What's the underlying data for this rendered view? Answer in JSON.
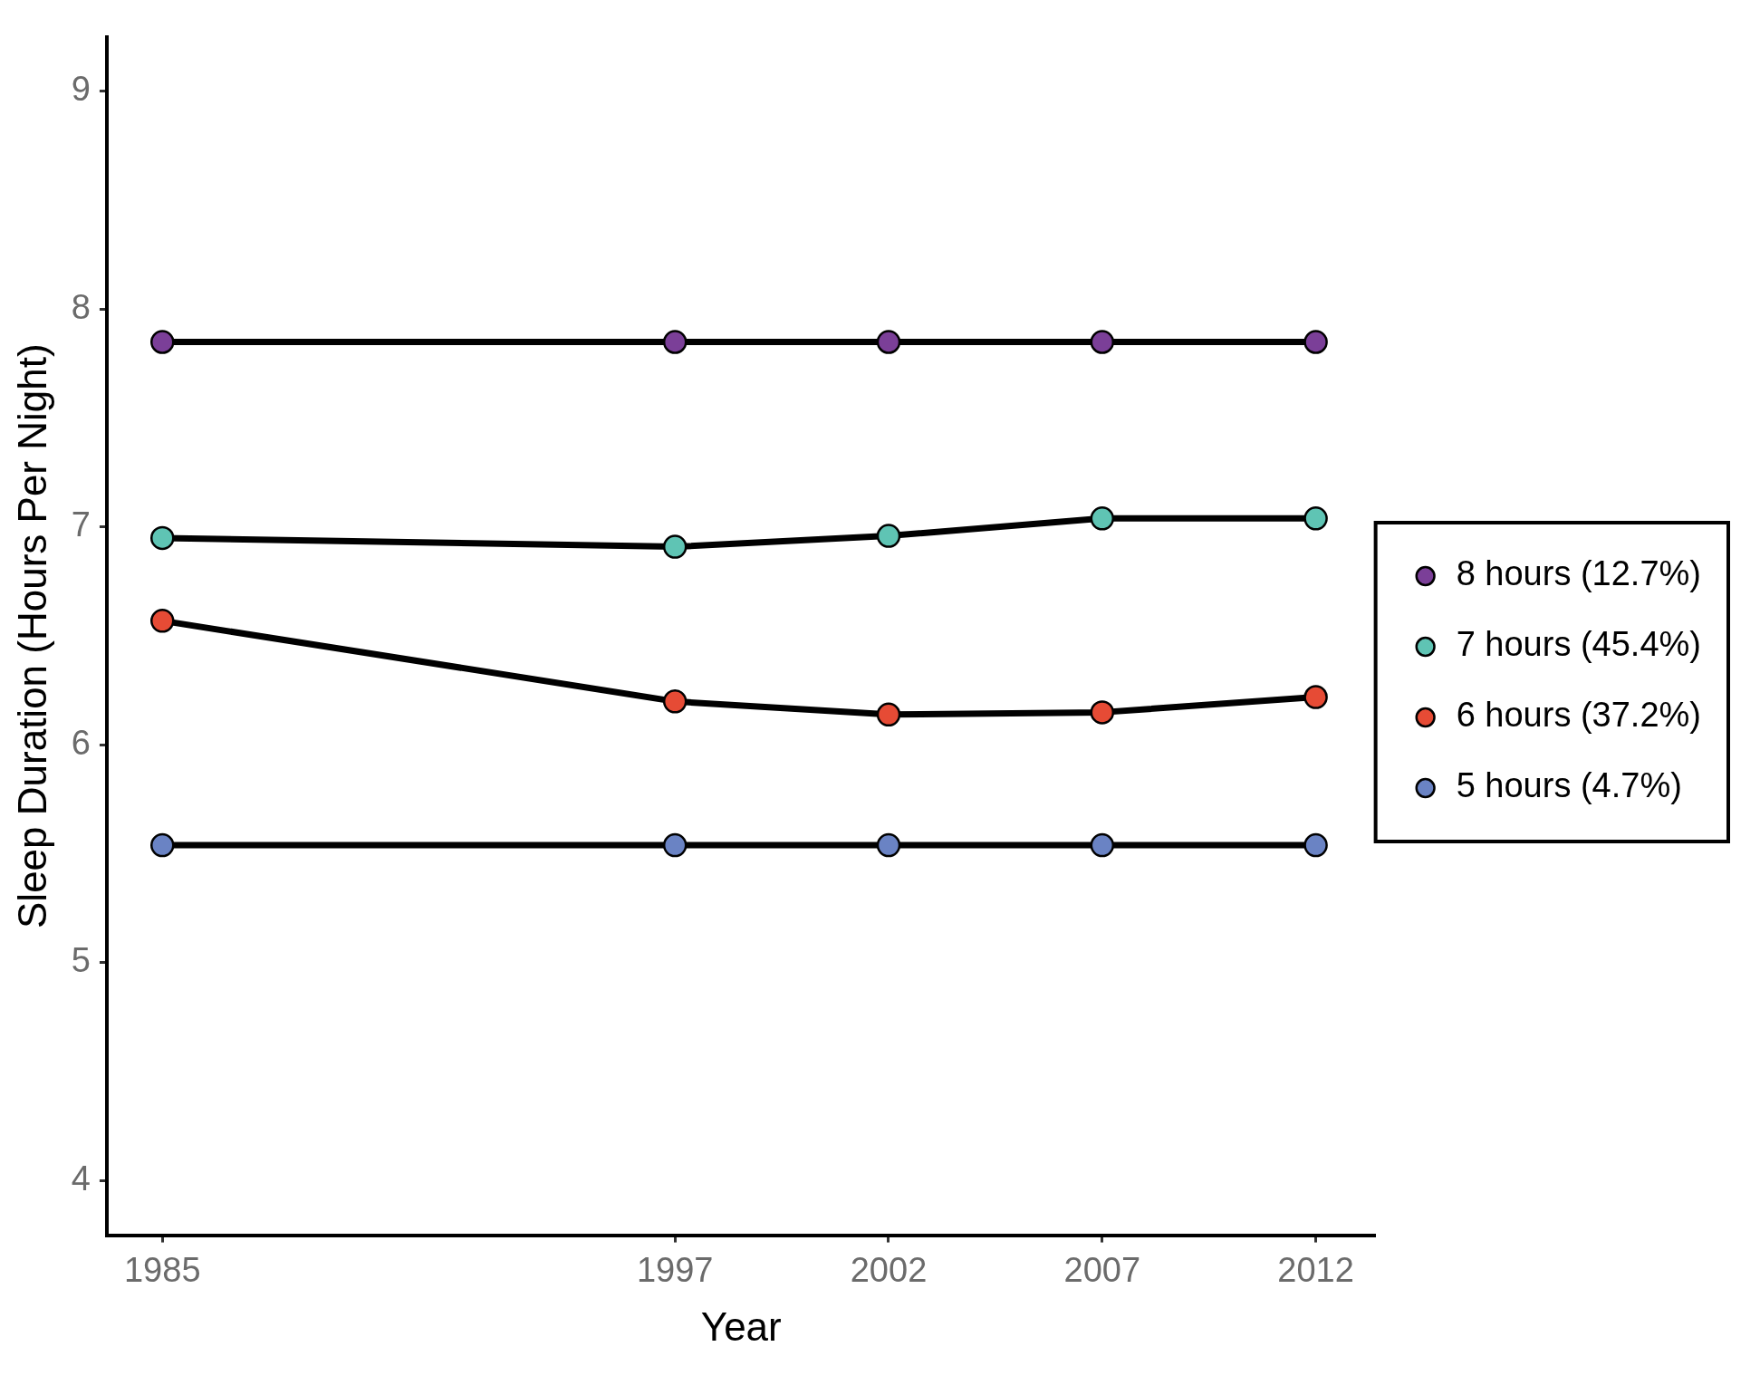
{
  "chart_data": {
    "type": "line",
    "xlabel": "Year",
    "ylabel": "Sleep Duration (Hours Per Night)",
    "x": [
      1985,
      1997,
      2002,
      2007,
      2012
    ],
    "xlim": [
      1983.7,
      2013.4
    ],
    "xticks": [
      1985,
      1997,
      2002,
      2007,
      2012
    ],
    "ylim": [
      3.75,
      9.25
    ],
    "yticks": [
      4,
      5,
      6,
      7,
      8,
      9
    ],
    "series": [
      {
        "name": "8 hours (12.7%)",
        "color": "#7b3f98",
        "values": [
          7.85,
          7.85,
          7.85,
          7.85,
          7.85
        ]
      },
      {
        "name": "7 hours (45.4%)",
        "color": "#5fc4b4",
        "values": [
          6.95,
          6.91,
          6.96,
          7.04,
          7.04
        ]
      },
      {
        "name": "6 hours (37.2%)",
        "color": "#e64b35",
        "values": [
          6.57,
          6.2,
          6.14,
          6.15,
          6.22
        ]
      },
      {
        "name": "5 hours (4.7%)",
        "color": "#6a83c4",
        "values": [
          5.54,
          5.54,
          5.54,
          5.54,
          5.54
        ]
      }
    ],
    "legend": "right",
    "marker": "circle",
    "line_style": "solid",
    "grid": false
  }
}
